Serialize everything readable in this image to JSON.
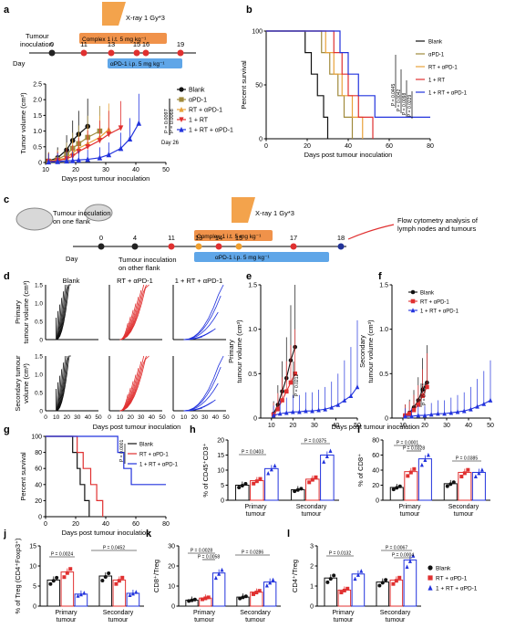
{
  "panels": {
    "a": {
      "label": "a",
      "timeline": {
        "xray": "X-ray 1 Gy*3",
        "tumour_inoculation": "Tumour\ninoculation",
        "complex": "Complex 1 i.t. 5 mg kg⁻¹",
        "apd1": "αPD-1 i.p. 5 mg kg⁻¹",
        "day_label": "Day",
        "days": [
          "0",
          "11",
          "13",
          "15",
          "16",
          "19"
        ]
      }
    },
    "c": {
      "label": "c",
      "xray": "X-ray 1 Gy*3",
      "inoc_one": "Tumour inoculation\non one flank",
      "inoc_other": "Tumour inoculation\non other flank",
      "complex": "Complex 1 i.t. 5 mg kg⁻¹",
      "apd1": "αPD-1 i.p. 5 mg kg⁻¹",
      "flow": "Flow cytometry analysis of\nlymph nodes and tumours",
      "day_label": "Day",
      "days": [
        "0",
        "4",
        "11",
        "13",
        "14",
        "15",
        "17",
        "18"
      ]
    },
    "d": {
      "label": "d",
      "cols": [
        "Blank",
        "RT + αPD-1",
        "1 + RT + αPD-1"
      ],
      "row1_ylabel": "Primary\ntumour volume (cm³)",
      "row2_ylabel": "Secondary tumour\nvolume (cm³)",
      "xlabel": "Days post tumour inoculation",
      "yticks": [
        "0",
        "0.5",
        "1.0",
        "1.5"
      ],
      "xticks": [
        "0",
        "10",
        "20",
        "30",
        "40",
        "50"
      ]
    }
  },
  "colors": {
    "blank": "#111111",
    "apd1": "#a08a3c",
    "rt_apd1_a": "#e8a23a",
    "rt": "#e8a23a",
    "triple": "#2233dd",
    "red": "#e03030",
    "orange": "#f29a3c",
    "blue": "#3a6fd8"
  },
  "chart_data": [
    {
      "panel": "a",
      "type": "line",
      "ylabel": "Tumor volume (cm³)",
      "xlabel": "Days post tumour inoculation",
      "xlim": [
        0,
        50
      ],
      "ylim": [
        0,
        2.5
      ],
      "xticks": [
        "10",
        "20",
        "30",
        "40",
        "50"
      ],
      "yticks": [
        "0",
        "0.5",
        "1.0",
        "1.5",
        "2.0",
        "2.5"
      ],
      "series": [
        {
          "name": "Blank",
          "x": [
            11,
            14,
            17,
            19,
            21,
            24
          ],
          "y": [
            0.05,
            0.15,
            0.4,
            0.7,
            0.9,
            1.15
          ]
        },
        {
          "name": "αPD-1",
          "x": [
            11,
            14,
            17,
            19,
            21,
            24,
            28
          ],
          "y": [
            0.04,
            0.1,
            0.25,
            0.45,
            0.6,
            0.8,
            1.0
          ]
        },
        {
          "name": "RT + αPD-1",
          "x": [
            11,
            14,
            17,
            19,
            21,
            24,
            28,
            31
          ],
          "y": [
            0.04,
            0.08,
            0.15,
            0.3,
            0.45,
            0.6,
            0.8,
            1.05
          ]
        },
        {
          "name": "1 + RT",
          "x": [
            11,
            14,
            17,
            19,
            21,
            24,
            28,
            31,
            35
          ],
          "y": [
            0.03,
            0.06,
            0.12,
            0.2,
            0.35,
            0.5,
            0.7,
            0.9,
            1.1
          ]
        },
        {
          "name": "1 + RT + αPD-1",
          "x": [
            11,
            14,
            17,
            19,
            21,
            24,
            28,
            31,
            35,
            38,
            41
          ],
          "y": [
            0.02,
            0.03,
            0.05,
            0.06,
            0.08,
            0.1,
            0.15,
            0.25,
            0.45,
            0.75,
            1.25
          ]
        }
      ],
      "annotations": [
        "P = 0.0097",
        "P = 0.0068",
        "Day 26"
      ]
    },
    {
      "panel": "b",
      "type": "line",
      "ylabel": "Percent survival",
      "xlabel": "Days post tumour inoculation",
      "xlim": [
        0,
        80
      ],
      "ylim": [
        0,
        100
      ],
      "xticks": [
        "0",
        "20",
        "40",
        "60",
        "80"
      ],
      "yticks": [
        "0",
        "50",
        "100"
      ],
      "series": [
        {
          "name": "Blank",
          "steps": [
            [
              0,
              100
            ],
            [
              19,
              100
            ],
            [
              19,
              80
            ],
            [
              22,
              80
            ],
            [
              22,
              60
            ],
            [
              25,
              60
            ],
            [
              25,
              40
            ],
            [
              28,
              40
            ],
            [
              28,
              20
            ],
            [
              30,
              20
            ],
            [
              30,
              0
            ]
          ]
        },
        {
          "name": "αPD-1",
          "steps": [
            [
              0,
              100
            ],
            [
              27,
              100
            ],
            [
              27,
              80
            ],
            [
              31,
              80
            ],
            [
              31,
              60
            ],
            [
              35,
              60
            ],
            [
              35,
              40
            ],
            [
              38,
              40
            ],
            [
              38,
              20
            ],
            [
              42,
              20
            ],
            [
              42,
              0
            ]
          ]
        },
        {
          "name": "RT + αPD-1",
          "steps": [
            [
              0,
              100
            ],
            [
              29,
              100
            ],
            [
              29,
              80
            ],
            [
              33,
              80
            ],
            [
              33,
              60
            ],
            [
              37,
              60
            ],
            [
              37,
              40
            ],
            [
              42,
              40
            ],
            [
              42,
              20
            ],
            [
              47,
              20
            ],
            [
              47,
              0
            ]
          ]
        },
        {
          "name": "1 + RT",
          "steps": [
            [
              0,
              100
            ],
            [
              33,
              100
            ],
            [
              33,
              80
            ],
            [
              37,
              80
            ],
            [
              37,
              60
            ],
            [
              40,
              60
            ],
            [
              40,
              40
            ],
            [
              45,
              40
            ],
            [
              45,
              20
            ],
            [
              52,
              20
            ],
            [
              52,
              0
            ]
          ]
        },
        {
          "name": "1 + RT + αPD-1",
          "steps": [
            [
              0,
              100
            ],
            [
              36,
              100
            ],
            [
              36,
              80
            ],
            [
              40,
              80
            ],
            [
              40,
              60
            ],
            [
              45,
              60
            ],
            [
              45,
              40
            ],
            [
              53,
              40
            ],
            [
              53,
              20
            ],
            [
              80,
              20
            ]
          ]
        }
      ],
      "annotations": [
        "P = 0.0445",
        "P = 0.0042",
        "P = 0.0098",
        "P = 0.0229"
      ]
    },
    {
      "panel": "e",
      "type": "line",
      "ylabel": "Primary\ntumour volume (cm³)",
      "xlim": [
        5,
        50
      ],
      "ylim": [
        0,
        1.5
      ],
      "xticks": [
        "10",
        "20",
        "30",
        "40",
        "50"
      ],
      "yticks": [
        "0",
        "0.5",
        "1.0",
        "1.5"
      ],
      "series": [
        {
          "name": "Blank",
          "x": [
            11,
            13,
            15,
            17,
            19,
            21
          ],
          "y": [
            0.05,
            0.15,
            0.3,
            0.45,
            0.65,
            0.8
          ]
        },
        {
          "name": "RT + αPD-1",
          "x": [
            11,
            13,
            15,
            17,
            19,
            21
          ],
          "y": [
            0.04,
            0.1,
            0.2,
            0.3,
            0.4,
            0.5
          ]
        },
        {
          "name": "1 + RT + αPD-1",
          "x": [
            11,
            14,
            17,
            20,
            23,
            26,
            29,
            32,
            35,
            38,
            41,
            44,
            47,
            50
          ],
          "y": [
            0.03,
            0.05,
            0.06,
            0.07,
            0.07,
            0.08,
            0.08,
            0.09,
            0.1,
            0.12,
            0.15,
            0.2,
            0.25,
            0.35
          ]
        }
      ],
      "annotations": [
        "P = 0.0212"
      ]
    },
    {
      "panel": "f",
      "type": "line",
      "ylabel": "Secondary\ntumour volume (cm³)",
      "xlim": [
        5,
        50
      ],
      "ylim": [
        0,
        1.5
      ],
      "xticks": [
        "10",
        "20",
        "30",
        "40",
        "50"
      ],
      "yticks": [
        "0",
        "0.5",
        "1.0",
        "1.5"
      ],
      "series": [
        {
          "name": "Blank",
          "x": [
            11,
            13,
            15,
            17,
            19,
            21
          ],
          "y": [
            0.03,
            0.06,
            0.12,
            0.2,
            0.32,
            0.4
          ]
        },
        {
          "name": "RT + αPD-1",
          "x": [
            11,
            13,
            15,
            17,
            19,
            21
          ],
          "y": [
            0.03,
            0.05,
            0.09,
            0.15,
            0.25,
            0.35
          ]
        },
        {
          "name": "1 + RT + αPD-1",
          "x": [
            11,
            14,
            17,
            20,
            23,
            26,
            29,
            32,
            35,
            38,
            41,
            44,
            47,
            50
          ],
          "y": [
            0.02,
            0.02,
            0.03,
            0.03,
            0.04,
            0.05,
            0.05,
            0.06,
            0.07,
            0.08,
            0.1,
            0.13,
            0.16,
            0.2
          ]
        }
      ],
      "annotations": [
        "P = 0.0001"
      ]
    },
    {
      "panel": "g",
      "type": "line",
      "ylabel": "Percent survival",
      "xlabel": "Days post tumour inoculation",
      "xlim": [
        0,
        80
      ],
      "ylim": [
        0,
        100
      ],
      "xticks": [
        "0",
        "20",
        "40",
        "60",
        "80"
      ],
      "yticks": [
        "0",
        "20",
        "40",
        "60",
        "80",
        "100"
      ],
      "series": [
        {
          "name": "Blank",
          "steps": [
            [
              0,
              100
            ],
            [
              18,
              100
            ],
            [
              18,
              80
            ],
            [
              21,
              80
            ],
            [
              21,
              60
            ],
            [
              23,
              60
            ],
            [
              23,
              40
            ],
            [
              26,
              40
            ],
            [
              26,
              20
            ],
            [
              29,
              20
            ],
            [
              29,
              0
            ]
          ]
        },
        {
          "name": "RT + αPD-1",
          "steps": [
            [
              0,
              100
            ],
            [
              21,
              100
            ],
            [
              21,
              80
            ],
            [
              25,
              80
            ],
            [
              25,
              60
            ],
            [
              30,
              60
            ],
            [
              30,
              40
            ],
            [
              34,
              40
            ],
            [
              34,
              20
            ],
            [
              38,
              20
            ],
            [
              38,
              0
            ]
          ]
        },
        {
          "name": "1 + RT + αPD-1",
          "steps": [
            [
              0,
              100
            ],
            [
              48,
              100
            ],
            [
              48,
              80
            ],
            [
              52,
              80
            ],
            [
              52,
              60
            ],
            [
              57,
              60
            ],
            [
              57,
              40
            ],
            [
              80,
              40
            ]
          ]
        }
      ],
      "annotations": [
        "P = 0.0001"
      ]
    },
    {
      "panel": "h",
      "type": "bar",
      "ylabel": "% of CD45⁺CD3⁺",
      "categories": [
        "Primary\ntumour",
        "Secondary\ntumour"
      ],
      "ylim": [
        0,
        20
      ],
      "yticks": [
        "0",
        "5",
        "10",
        "15",
        "20"
      ],
      "series": [
        {
          "name": "Blank",
          "values": [
            5,
            3.5
          ]
        },
        {
          "name": "RT + αPD-1",
          "values": [
            6.5,
            7
          ]
        },
        {
          "name": "1 + RT + αPD-1",
          "values": [
            10.5,
            15
          ]
        }
      ],
      "annotations": [
        "P = 0.0403",
        "P = 0.0375"
      ]
    },
    {
      "panel": "i",
      "type": "bar",
      "ylabel": "% of CD8⁺",
      "categories": [
        "Primary\ntumour",
        "Secondary\ntumour"
      ],
      "ylim": [
        0,
        80
      ],
      "yticks": [
        "0",
        "20",
        "40",
        "60",
        "80"
      ],
      "series": [
        {
          "name": "Blank",
          "values": [
            17,
            22
          ]
        },
        {
          "name": "RT + αPD-1",
          "values": [
            38,
            37
          ]
        },
        {
          "name": "1 + RT + αPD-1",
          "values": [
            55,
            37
          ]
        }
      ],
      "annotations": [
        "P = 0.0001",
        "P = 0.0328",
        "P = 0.0385"
      ]
    },
    {
      "panel": "j",
      "type": "bar",
      "ylabel": "% of Treg (CD4⁺Foxp3⁺)",
      "categories": [
        "Primary\ntumour",
        "Secondary\ntumour"
      ],
      "ylim": [
        0,
        15
      ],
      "yticks": [
        "0",
        "5",
        "10",
        "15"
      ],
      "series": [
        {
          "name": "Blank",
          "values": [
            6.5,
            7.5
          ]
        },
        {
          "name": "RT + αPD-1",
          "values": [
            8.5,
            6.5
          ]
        },
        {
          "name": "1 + RT + αPD-1",
          "values": [
            3,
            3.2
          ]
        }
      ],
      "annotations": [
        "P = 0.0024",
        "P = 0.0452"
      ]
    },
    {
      "panel": "k",
      "type": "bar",
      "ylabel": "CD8⁺/Treg",
      "categories": [
        "Primary\ntumour",
        "Secondary\ntumour"
      ],
      "ylim": [
        0,
        30
      ],
      "yticks": [
        "0",
        "10",
        "20",
        "30"
      ],
      "series": [
        {
          "name": "Blank",
          "values": [
            3,
            4.5
          ]
        },
        {
          "name": "RT + αPD-1",
          "values": [
            4,
            7
          ]
        },
        {
          "name": "1 + RT + αPD-1",
          "values": [
            16.5,
            12
          ]
        }
      ],
      "annotations": [
        "P = 0.0028",
        "P = 0.0058",
        "P = 0.0286"
      ]
    },
    {
      "panel": "l",
      "type": "bar",
      "ylabel": "CD4⁺/Treg",
      "categories": [
        "Primary\ntumour",
        "Secondary\ntumour"
      ],
      "ylim": [
        0,
        3
      ],
      "yticks": [
        "0",
        "1",
        "2",
        "3"
      ],
      "series": [
        {
          "name": "Blank",
          "values": [
            1.4,
            1.2
          ]
        },
        {
          "name": "RT + αPD-1",
          "values": [
            0.8,
            1.3
          ]
        },
        {
          "name": "1 + RT + αPD-1",
          "values": [
            1.6,
            2.3
          ]
        }
      ],
      "annotations": [
        "P = 0.0132",
        "P = 0.0067",
        "P = 0.0004"
      ]
    }
  ],
  "legends": {
    "a": [
      "Blank",
      "αPD-1",
      "RT + αPD-1",
      "1 + RT",
      "1 + RT + αPD-1"
    ],
    "b": [
      "Blank",
      "αPD-1",
      "RT + αPD-1",
      "1 + RT",
      "1 + RT + αPD-1"
    ],
    "f": [
      "Blank",
      "RT + αPD-1",
      "1 + RT + αPD-1"
    ],
    "g": [
      "Blank",
      "RT + αPD-1",
      "1 + RT + αPD-1"
    ],
    "l": [
      "Blank",
      "RT + αPD-1",
      "1 + RT + αPD-1"
    ]
  }
}
